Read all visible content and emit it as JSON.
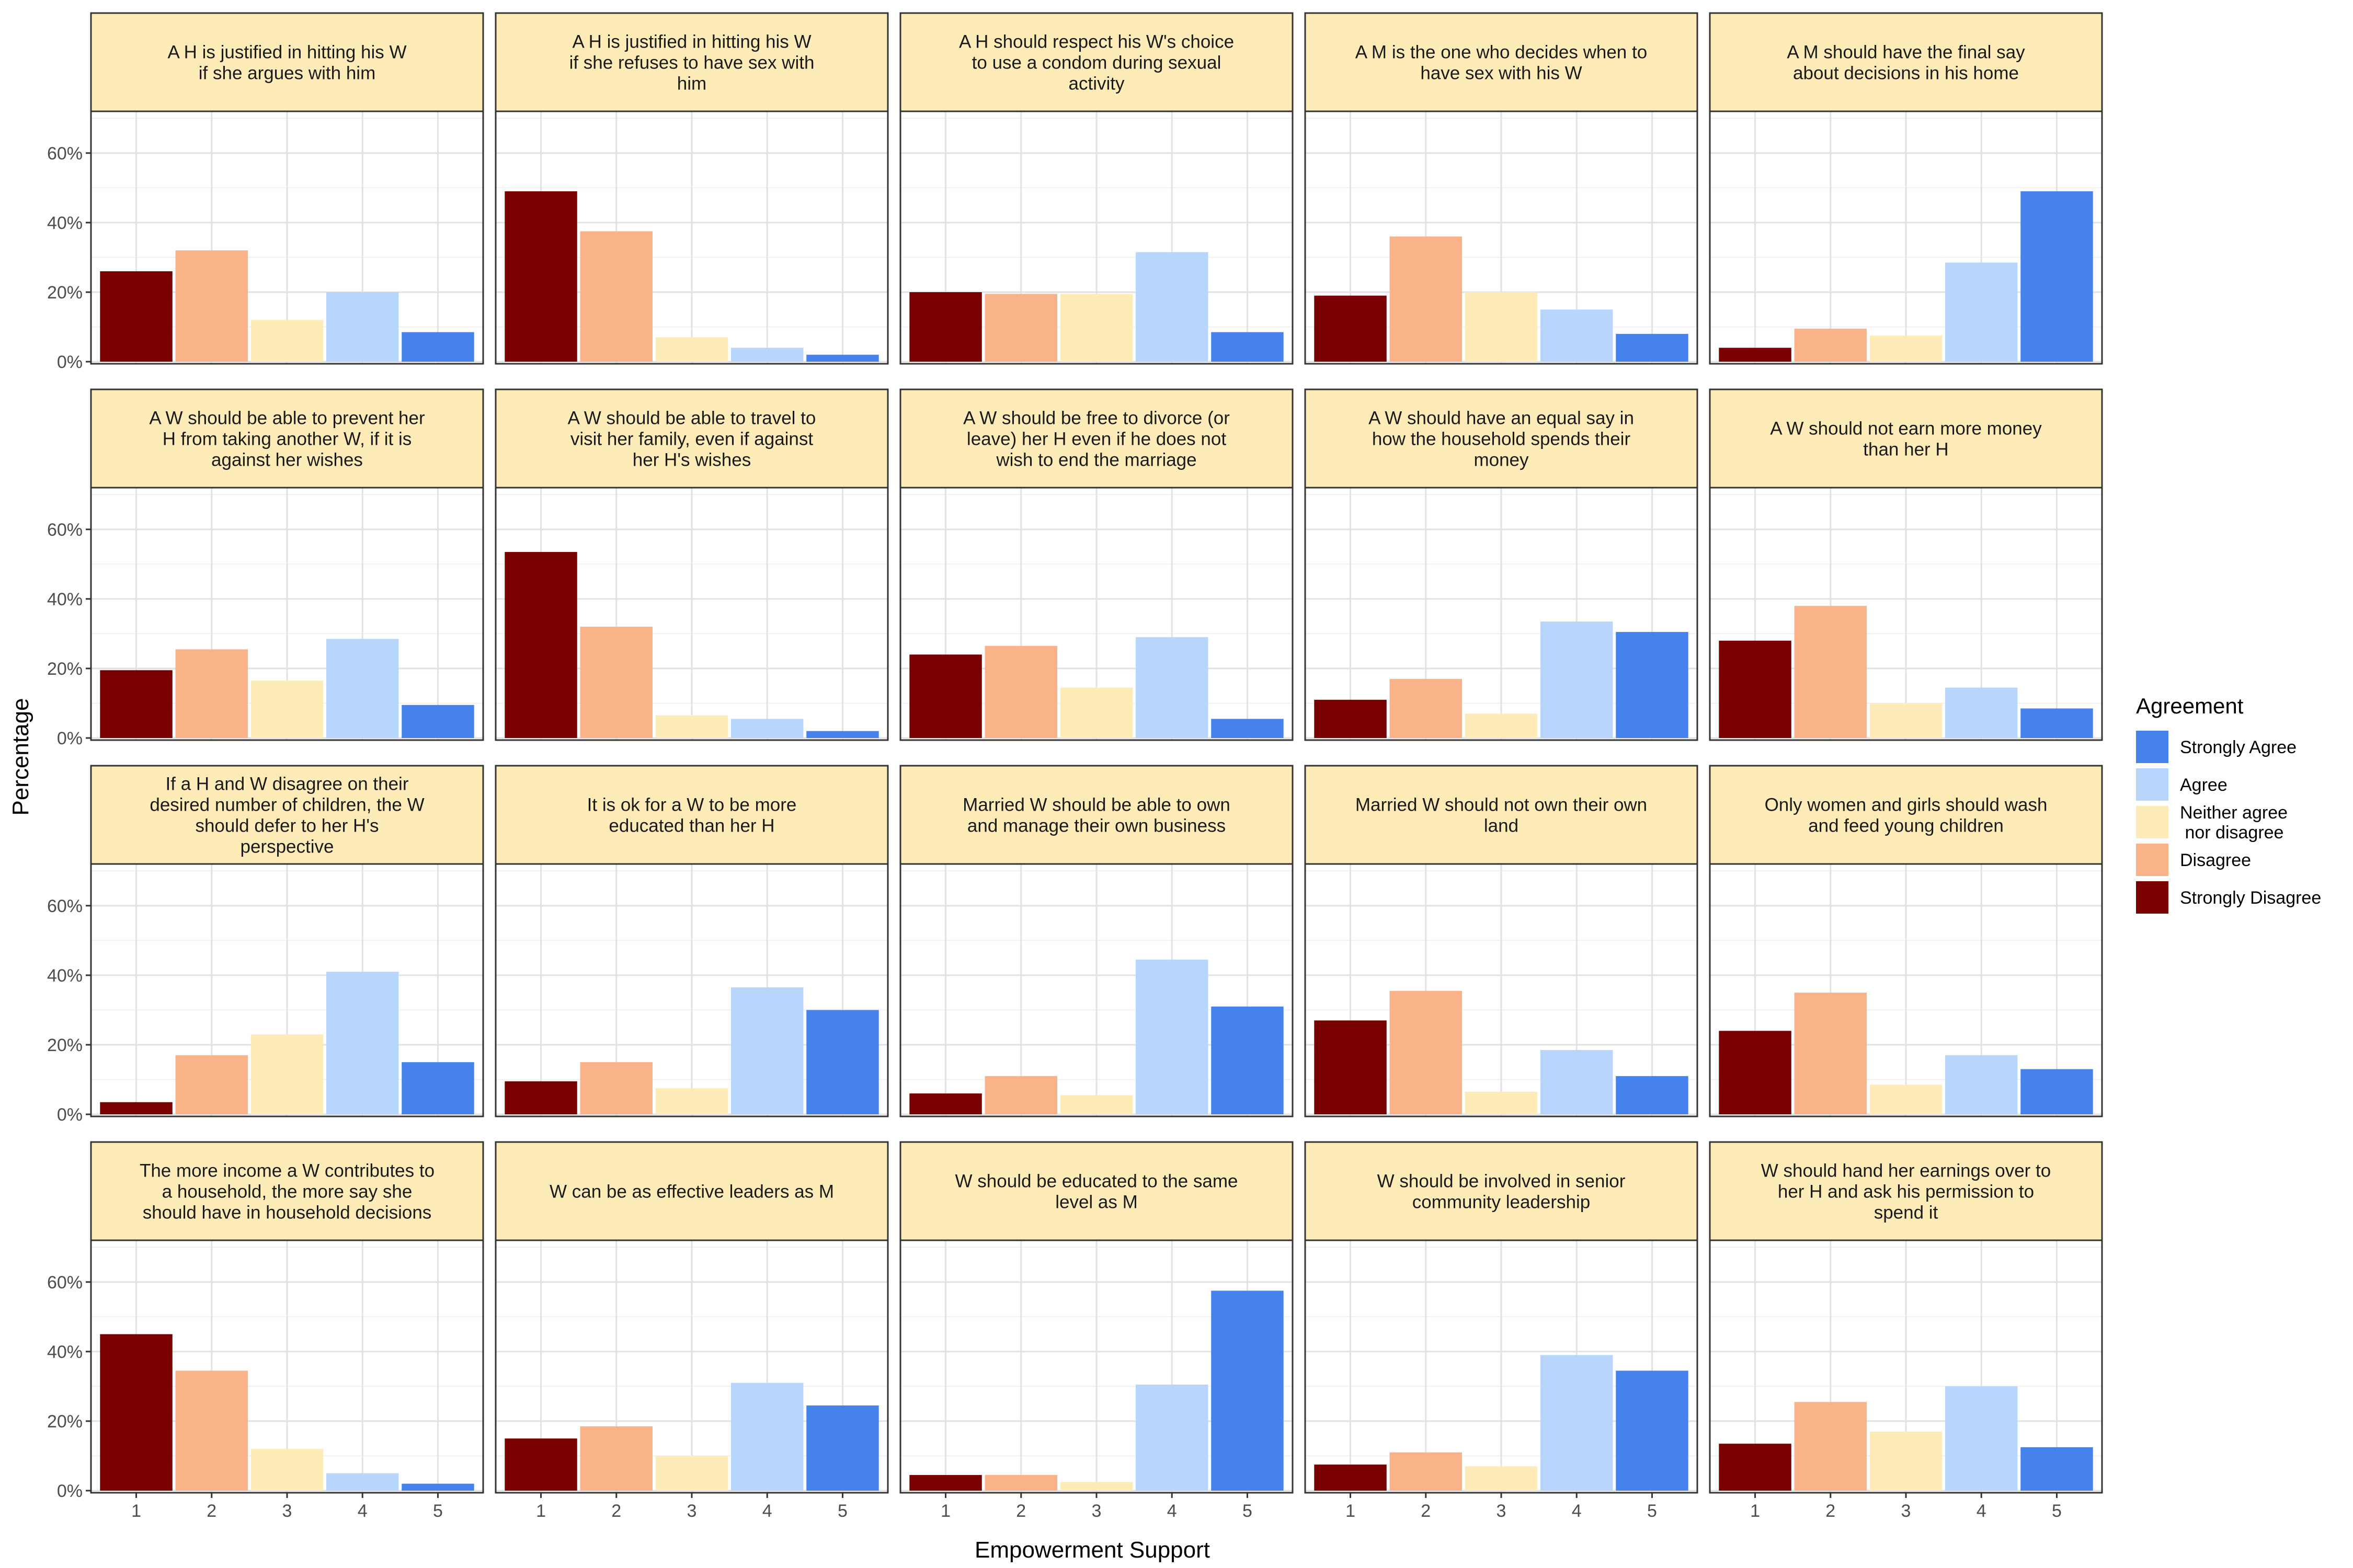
{
  "chart_data": {
    "type": "bar",
    "facet_layout": "4 rows x 5 columns",
    "xlabel": "Empowerment Support",
    "ylabel": "Percentage",
    "x": [
      1,
      2,
      3,
      4,
      5
    ],
    "ylim": [
      0,
      0.6
    ],
    "yticks": [
      "0%",
      "20%",
      "40%",
      "60%"
    ],
    "grid": true,
    "legend": {
      "title": "Agreement",
      "position": "right",
      "entries": [
        {
          "label": "Strongly Agree",
          "color": "#4682EB"
        },
        {
          "label": "Agree",
          "color": "#B8D6FB"
        },
        {
          "label": "Neither agree\n nor disagree",
          "color": "#FDECB7"
        },
        {
          "label": "Disagree",
          "color": "#FAB289"
        },
        {
          "label": "Strongly Disagree",
          "color": "#780000"
        }
      ]
    },
    "bar_colors": [
      "#780000",
      "#FAB289",
      "#FDECB7",
      "#B8D6FB",
      "#4682EB"
    ],
    "panels": [
      {
        "title": "A H is justified in hitting his W\nif she argues with him",
        "values": [
          0.26,
          0.32,
          0.12,
          0.2,
          0.085
        ]
      },
      {
        "title": "A H is justified in hitting his W\nif she refuses to have sex with\nhim",
        "values": [
          0.49,
          0.375,
          0.07,
          0.04,
          0.02
        ]
      },
      {
        "title": "A H should respect his W's choice\nto use a condom during sexual\nactivity",
        "values": [
          0.2,
          0.195,
          0.195,
          0.315,
          0.085
        ]
      },
      {
        "title": "A M is the one who decides when to\nhave sex with his W",
        "values": [
          0.19,
          0.36,
          0.2,
          0.15,
          0.08
        ]
      },
      {
        "title": "A M should have the final say\nabout decisions in his home",
        "values": [
          0.04,
          0.095,
          0.075,
          0.285,
          0.49
        ]
      },
      {
        "title": "A W should be able to prevent her\nH from taking another W, if it is\nagainst her wishes",
        "values": [
          0.195,
          0.255,
          0.165,
          0.285,
          0.095
        ]
      },
      {
        "title": "A W should be able to travel to\nvisit her family, even if against\nher H's wishes",
        "values": [
          0.535,
          0.32,
          0.065,
          0.055,
          0.02
        ]
      },
      {
        "title": "A W should be free to divorce (or\nleave) her H even if he does not\nwish to end the marriage",
        "values": [
          0.24,
          0.265,
          0.145,
          0.29,
          0.055
        ]
      },
      {
        "title": "A W should have an equal say in\nhow the household spends their\nmoney",
        "values": [
          0.11,
          0.17,
          0.07,
          0.335,
          0.305
        ]
      },
      {
        "title": "A W should not earn more money\nthan her H",
        "values": [
          0.28,
          0.38,
          0.1,
          0.145,
          0.085
        ]
      },
      {
        "title": "If a H and W disagree on their\ndesired number of children, the W\nshould defer to her H's\nperspective",
        "values": [
          0.035,
          0.17,
          0.23,
          0.41,
          0.15
        ]
      },
      {
        "title": "It is ok for a W to be more\neducated than her H",
        "values": [
          0.095,
          0.15,
          0.075,
          0.365,
          0.3
        ]
      },
      {
        "title": "Married W should be able to own\nand manage their own business",
        "values": [
          0.06,
          0.11,
          0.055,
          0.445,
          0.31
        ]
      },
      {
        "title": "Married W should not own their own\nland",
        "values": [
          0.27,
          0.355,
          0.065,
          0.185,
          0.11
        ]
      },
      {
        "title": "Only women and girls should wash\nand feed young children",
        "values": [
          0.24,
          0.35,
          0.085,
          0.17,
          0.13
        ]
      },
      {
        "title": "The more income a W contributes to\na household, the more say she\nshould have in household decisions",
        "values": [
          0.45,
          0.345,
          0.12,
          0.05,
          0.02
        ]
      },
      {
        "title": "W can be as effective leaders as M",
        "values": [
          0.15,
          0.185,
          0.1,
          0.31,
          0.245
        ]
      },
      {
        "title": "W should be educated to the same\nlevel as M",
        "values": [
          0.045,
          0.045,
          0.025,
          0.305,
          0.575
        ]
      },
      {
        "title": "W should be involved in senior\ncommunity leadership",
        "values": [
          0.075,
          0.11,
          0.07,
          0.39,
          0.345
        ]
      },
      {
        "title": "W should hand her earnings over to\nher H and ask his permission to\nspend it",
        "values": [
          0.135,
          0.255,
          0.17,
          0.3,
          0.125
        ]
      }
    ]
  }
}
